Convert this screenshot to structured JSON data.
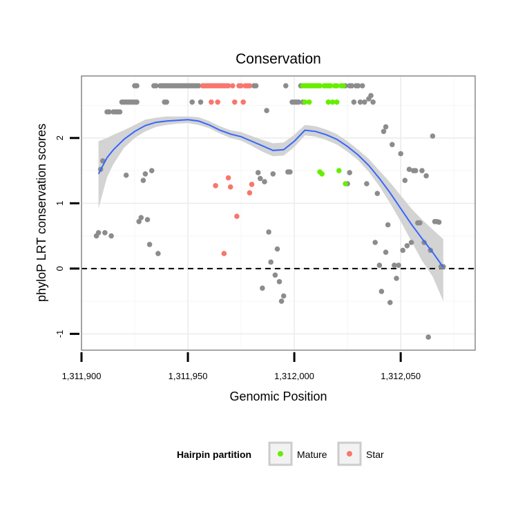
{
  "chart_data": {
    "type": "scatter",
    "title": "Conservation",
    "xlabel": "Genomic Position",
    "ylabel": "phyloP LRT conservation scores",
    "xlim": [
      1311900,
      1312085
    ],
    "ylim": [
      -1.25,
      2.95
    ],
    "x_ticks": [
      1311900,
      1311950,
      1312000,
      1312050
    ],
    "x_tick_labels": [
      "1,311,900",
      "1,311,950",
      "1,312,000",
      "1,312,050"
    ],
    "y_ticks": [
      -1,
      0,
      1,
      2
    ],
    "y_tick_labels": [
      "-1",
      "0",
      "1",
      "2"
    ],
    "reference_line": {
      "y": 0,
      "style": "dashed"
    },
    "legend": {
      "title": "Hairpin partition",
      "position": "bottom",
      "entries": [
        {
          "label": "Mature",
          "color": "#66ee00"
        },
        {
          "label": "Star",
          "color": "#f8766d"
        }
      ]
    },
    "colors": {
      "other": "#8c8c8c",
      "Mature": "#66ee00",
      "Star": "#f8766d",
      "smooth": "#3366ff",
      "band": "#d3d3d3"
    },
    "series": [
      {
        "name": "Other",
        "points": [
          [
            1311907,
            0.5
          ],
          [
            1311908,
            0.55
          ],
          [
            1311909,
            1.52
          ],
          [
            1311910,
            1.65
          ],
          [
            1311911,
            0.55
          ],
          [
            1311912,
            2.4
          ],
          [
            1311913,
            2.4
          ],
          [
            1311914,
            0.5
          ],
          [
            1311915,
            2.4
          ],
          [
            1311916,
            2.4
          ],
          [
            1311917,
            2.4
          ],
          [
            1311918,
            2.4
          ],
          [
            1311919,
            2.55
          ],
          [
            1311920,
            2.55
          ],
          [
            1311921,
            1.43
          ],
          [
            1311921,
            2.55
          ],
          [
            1311922,
            2.55
          ],
          [
            1311923,
            2.55
          ],
          [
            1311924,
            2.55
          ],
          [
            1311925,
            2.8
          ],
          [
            1311925,
            2.55
          ],
          [
            1311926,
            2.8
          ],
          [
            1311926,
            2.55
          ],
          [
            1311927,
            0.72
          ],
          [
            1311928,
            0.78
          ],
          [
            1311929,
            1.35
          ],
          [
            1311930,
            1.45
          ],
          [
            1311931,
            0.75
          ],
          [
            1311932,
            0.37
          ],
          [
            1311933,
            1.5
          ],
          [
            1311934,
            2.8
          ],
          [
            1311935,
            2.8
          ],
          [
            1311936,
            0.23
          ],
          [
            1311937,
            2.8
          ],
          [
            1311938,
            2.8
          ],
          [
            1311939,
            2.8
          ],
          [
            1311939,
            2.55
          ],
          [
            1311940,
            2.55
          ],
          [
            1311940,
            2.8
          ],
          [
            1311941,
            2.8
          ],
          [
            1311942,
            2.8
          ],
          [
            1311943,
            2.8
          ],
          [
            1311944,
            2.8
          ],
          [
            1311945,
            2.8
          ],
          [
            1311946,
            2.8
          ],
          [
            1311947,
            2.8
          ],
          [
            1311948,
            2.8
          ],
          [
            1311949,
            2.8
          ],
          [
            1311950,
            2.8
          ],
          [
            1311951,
            2.8
          ],
          [
            1311952,
            2.55
          ],
          [
            1311952,
            2.8
          ],
          [
            1311953,
            2.8
          ],
          [
            1311954,
            2.8
          ],
          [
            1311955,
            2.8
          ],
          [
            1311956,
            2.55
          ],
          [
            1311957,
            2.8
          ],
          [
            1311981,
            2.8
          ],
          [
            1311982,
            2.8
          ],
          [
            1311983,
            1.47
          ],
          [
            1311984,
            1.38
          ],
          [
            1311985,
            -0.3
          ],
          [
            1311986,
            1.33
          ],
          [
            1311987,
            2.42
          ],
          [
            1311988,
            0.56
          ],
          [
            1311989,
            0.1
          ],
          [
            1311990,
            1.45
          ],
          [
            1311991,
            -0.1
          ],
          [
            1311992,
            0.3
          ],
          [
            1311993,
            -0.2
          ],
          [
            1311994,
            -0.5
          ],
          [
            1311995,
            -0.42
          ],
          [
            1311996,
            2.8
          ],
          [
            1311997,
            1.48
          ],
          [
            1311998,
            1.48
          ],
          [
            1311999,
            2.55
          ],
          [
            1312000,
            2.55
          ],
          [
            1312001,
            2.55
          ],
          [
            1312002,
            2.55
          ],
          [
            1312003,
            2.8
          ],
          [
            1312004,
            2.55
          ],
          [
            1312024,
            2.8
          ],
          [
            1312025,
            1.3
          ],
          [
            1312026,
            2.8
          ],
          [
            1312026,
            1.47
          ],
          [
            1312027,
            2.8
          ],
          [
            1312028,
            2.55
          ],
          [
            1312029,
            2.8
          ],
          [
            1312030,
            2.8
          ],
          [
            1312031,
            2.55
          ],
          [
            1312032,
            2.8
          ],
          [
            1312033,
            2.55
          ],
          [
            1312034,
            1.3
          ],
          [
            1312035,
            2.6
          ],
          [
            1312036,
            2.65
          ],
          [
            1312037,
            2.55
          ],
          [
            1312038,
            0.4
          ],
          [
            1312039,
            1.15
          ],
          [
            1312040,
            0.05
          ],
          [
            1312041,
            -0.35
          ],
          [
            1312042,
            2.1
          ],
          [
            1312043,
            0.25
          ],
          [
            1312043,
            2.17
          ],
          [
            1312044,
            0.67
          ],
          [
            1312045,
            -0.52
          ],
          [
            1312046,
            1.9
          ],
          [
            1312047,
            0.05
          ],
          [
            1312048,
            -0.15
          ],
          [
            1312049,
            0.05
          ],
          [
            1312050,
            1.76
          ],
          [
            1312051,
            0.28
          ],
          [
            1312052,
            1.35
          ],
          [
            1312053,
            0.35
          ],
          [
            1312054,
            1.52
          ],
          [
            1312055,
            0.4
          ],
          [
            1312056,
            1.5
          ],
          [
            1312057,
            1.5
          ],
          [
            1312058,
            0.7
          ],
          [
            1312059,
            0.7
          ],
          [
            1312060,
            1.5
          ],
          [
            1312061,
            0.4
          ],
          [
            1312062,
            1.42
          ],
          [
            1312063,
            -1.05
          ],
          [
            1312064,
            0.28
          ],
          [
            1312065,
            2.03
          ],
          [
            1312066,
            0.72
          ],
          [
            1312067,
            0.72
          ],
          [
            1312068,
            0.71
          ],
          [
            1312069,
            0.03
          ],
          [
            1312070,
            0.03
          ]
        ]
      },
      {
        "name": "Star",
        "points": [
          [
            1311957,
            2.8
          ],
          [
            1311958,
            2.8
          ],
          [
            1311959,
            2.8
          ],
          [
            1311960,
            2.8
          ],
          [
            1311961,
            2.55
          ],
          [
            1311961,
            2.8
          ],
          [
            1311962,
            2.8
          ],
          [
            1311963,
            1.27
          ],
          [
            1311963,
            2.8
          ],
          [
            1311964,
            2.55
          ],
          [
            1311964,
            2.8
          ],
          [
            1311965,
            2.8
          ],
          [
            1311966,
            2.8
          ],
          [
            1311967,
            0.23
          ],
          [
            1311967,
            2.8
          ],
          [
            1311968,
            2.8
          ],
          [
            1311969,
            1.39
          ],
          [
            1311969,
            2.8
          ],
          [
            1311970,
            1.25
          ],
          [
            1311971,
            2.8
          ],
          [
            1311972,
            2.55
          ],
          [
            1311973,
            0.8
          ],
          [
            1311974,
            2.8
          ],
          [
            1311975,
            2.8
          ],
          [
            1311976,
            2.55
          ],
          [
            1311977,
            2.8
          ],
          [
            1311978,
            2.8
          ],
          [
            1311979,
            1.16
          ],
          [
            1311979,
            2.8
          ],
          [
            1311980,
            1.29
          ]
        ]
      },
      {
        "name": "Mature",
        "points": [
          [
            1312004,
            2.8
          ],
          [
            1312005,
            2.8
          ],
          [
            1312005,
            2.55
          ],
          [
            1312006,
            2.8
          ],
          [
            1312007,
            2.55
          ],
          [
            1312007,
            2.8
          ],
          [
            1312008,
            2.8
          ],
          [
            1312009,
            2.8
          ],
          [
            1312010,
            2.8
          ],
          [
            1312011,
            2.8
          ],
          [
            1312012,
            2.8
          ],
          [
            1312012,
            1.48
          ],
          [
            1312013,
            1.45
          ],
          [
            1312014,
            2.8
          ],
          [
            1312015,
            2.8
          ],
          [
            1312016,
            2.8
          ],
          [
            1312016,
            2.55
          ],
          [
            1312017,
            2.8
          ],
          [
            1312018,
            2.55
          ],
          [
            1312019,
            2.8
          ],
          [
            1312020,
            2.8
          ],
          [
            1312020,
            2.55
          ],
          [
            1312021,
            1.5
          ],
          [
            1312022,
            2.8
          ],
          [
            1312023,
            2.8
          ],
          [
            1312024,
            1.3
          ]
        ]
      }
    ],
    "smooth": {
      "x": [
        1311908,
        1311912,
        1311915,
        1311920,
        1311925,
        1311930,
        1311935,
        1311940,
        1311945,
        1311950,
        1311955,
        1311960,
        1311965,
        1311970,
        1311975,
        1311980,
        1311985,
        1311990,
        1311995,
        1312000,
        1312005,
        1312010,
        1312015,
        1312020,
        1312025,
        1312030,
        1312035,
        1312040,
        1312045,
        1312050,
        1312055,
        1312060,
        1312065,
        1312070
      ],
      "y": [
        1.45,
        1.7,
        1.82,
        1.98,
        2.1,
        2.19,
        2.24,
        2.26,
        2.27,
        2.28,
        2.26,
        2.2,
        2.12,
        2.06,
        2.02,
        1.95,
        1.88,
        1.81,
        1.82,
        1.95,
        2.12,
        2.1,
        2.05,
        1.98,
        1.87,
        1.74,
        1.58,
        1.38,
        1.16,
        0.92,
        0.68,
        0.46,
        0.25,
        0.02
      ],
      "lower": [
        0.92,
        1.4,
        1.6,
        1.85,
        2.0,
        2.1,
        2.17,
        2.2,
        2.22,
        2.23,
        2.2,
        2.15,
        2.07,
        2.0,
        1.96,
        1.88,
        1.79,
        1.72,
        1.73,
        1.86,
        2.04,
        2.02,
        1.97,
        1.9,
        1.79,
        1.66,
        1.48,
        1.26,
        1.0,
        0.72,
        0.42,
        0.12,
        -0.12,
        -0.5
      ],
      "upper": [
        1.95,
        2.0,
        2.05,
        2.12,
        2.2,
        2.28,
        2.31,
        2.33,
        2.33,
        2.33,
        2.32,
        2.26,
        2.18,
        2.12,
        2.09,
        2.03,
        1.97,
        1.92,
        1.93,
        2.05,
        2.2,
        2.18,
        2.13,
        2.06,
        1.95,
        1.82,
        1.68,
        1.5,
        1.32,
        1.12,
        0.92,
        0.75,
        0.6,
        0.45
      ]
    }
  }
}
